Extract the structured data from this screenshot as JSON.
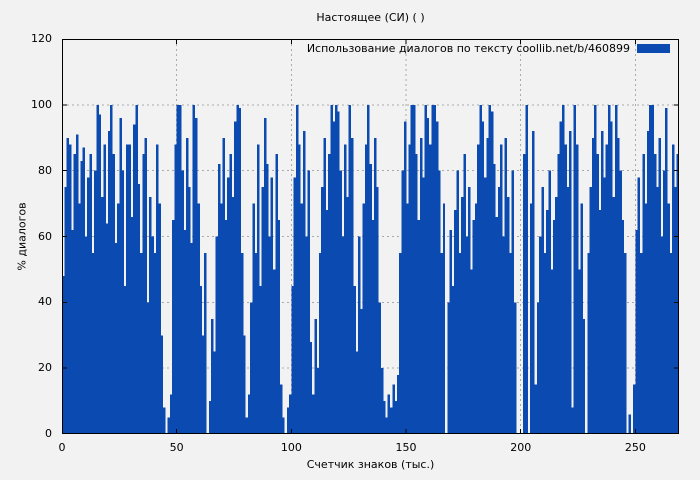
{
  "title": "Настоящее (СИ) ( )",
  "legend": {
    "label": "Использование диалогов по тексту  coollib.net/b/460899"
  },
  "axes": {
    "x": {
      "label": "Счетчик знаков (тыс.)",
      "ticks": [
        0,
        50,
        100,
        150,
        200,
        250
      ]
    },
    "y": {
      "label": "% диалогов",
      "ticks": [
        0,
        20,
        40,
        60,
        80,
        100,
        120
      ]
    }
  },
  "colors": {
    "bar": "#0b4ab0",
    "grid": "#aaaaaa",
    "frame": "#000000",
    "text": "#000000",
    "background": "#f2f2f2"
  },
  "chart_data": {
    "type": "bar",
    "title": "Настоящее (СИ) ( )",
    "xlabel": "Счетчик знаков (тыс.)",
    "ylabel": "% диалогов",
    "xlim": [
      0,
      269
    ],
    "ylim": [
      0,
      120
    ],
    "grid": true,
    "legend_position": "top-right-inside",
    "series_name": "Использование диалогов по тексту coollib.net/b/460899",
    "x_start": 0,
    "x_step": 1,
    "values": [
      48,
      75,
      90,
      88,
      62,
      85,
      91,
      70,
      83,
      87,
      60,
      78,
      85,
      55,
      80,
      100,
      97,
      72,
      88,
      64,
      92,
      100,
      85,
      58,
      70,
      96,
      80,
      45,
      88,
      88,
      66,
      94,
      100,
      76,
      55,
      85,
      90,
      40,
      72,
      60,
      55,
      88,
      70,
      30,
      8,
      0,
      5,
      12,
      65,
      88,
      100,
      100,
      80,
      62,
      90,
      75,
      58,
      100,
      96,
      70,
      45,
      30,
      55,
      0,
      10,
      35,
      25,
      60,
      82,
      70,
      90,
      65,
      78,
      85,
      72,
      95,
      100,
      99,
      55,
      30,
      5,
      12,
      40,
      70,
      55,
      88,
      45,
      75,
      96,
      82,
      60,
      78,
      50,
      85,
      65,
      15,
      5,
      0,
      8,
      12,
      45,
      78,
      100,
      88,
      70,
      92,
      60,
      80,
      28,
      12,
      35,
      20,
      55,
      75,
      90,
      68,
      85,
      100,
      95,
      100,
      98,
      80,
      60,
      88,
      72,
      100,
      90,
      45,
      25,
      60,
      38,
      70,
      88,
      100,
      82,
      65,
      90,
      75,
      40,
      20,
      10,
      5,
      12,
      8,
      15,
      10,
      18,
      55,
      80,
      95,
      70,
      88,
      100,
      100,
      85,
      65,
      90,
      78,
      100,
      96,
      88,
      100,
      100,
      95,
      80,
      55,
      70,
      0,
      40,
      62,
      45,
      68,
      80,
      55,
      72,
      85,
      60,
      75,
      50,
      65,
      70,
      88,
      100,
      95,
      78,
      90,
      100,
      98,
      82,
      66,
      75,
      88,
      60,
      90,
      72,
      55,
      80,
      40,
      0,
      0,
      0,
      85,
      100,
      0,
      70,
      92,
      15,
      40,
      60,
      75,
      55,
      68,
      80,
      50,
      65,
      72,
      85,
      95,
      100,
      88,
      75,
      92,
      8,
      100,
      88,
      50,
      70,
      35,
      0,
      55,
      75,
      90,
      100,
      85,
      68,
      92,
      78,
      88,
      100,
      95,
      72,
      100,
      90,
      80,
      65,
      55,
      0,
      6,
      0,
      15,
      62,
      78,
      55,
      85,
      70,
      92,
      100,
      100,
      85,
      75,
      90,
      60,
      80,
      99,
      70,
      55,
      88,
      75,
      85
    ]
  }
}
